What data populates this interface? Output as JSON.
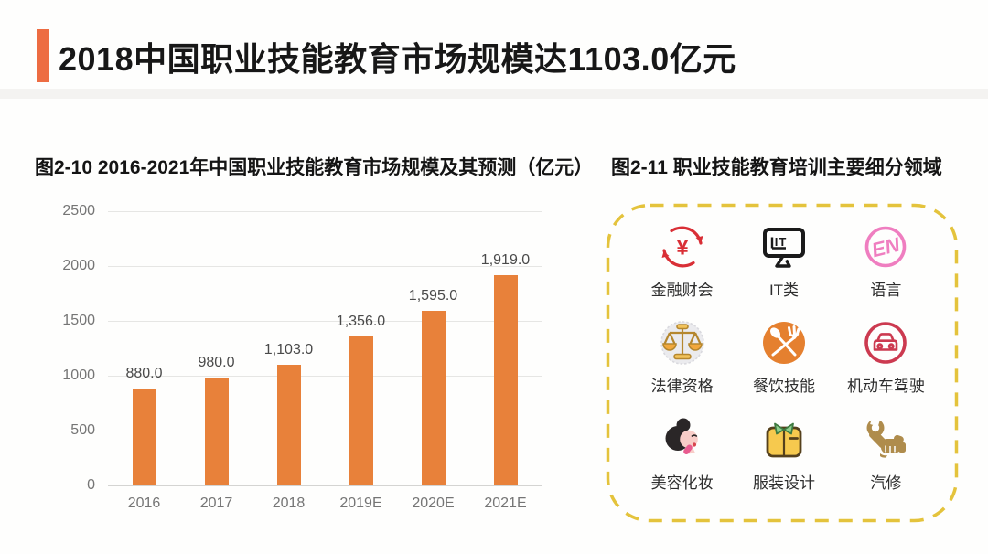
{
  "header": {
    "title": "2018中国职业技能教育市场规模达1103.0亿元",
    "accent_color": "#ED6C42"
  },
  "chart_data": {
    "type": "bar",
    "title": "图2-10 2016-2021年中国职业技能教育市场规模及其预测（亿元）",
    "categories": [
      "2016",
      "2017",
      "2018",
      "2019E",
      "2020E",
      "2021E"
    ],
    "values": [
      880.0,
      980.0,
      1103.0,
      1356.0,
      1595.0,
      1919.0
    ],
    "value_labels": [
      "880.0",
      "980.0",
      "1,103.0",
      "1,356.0",
      "1,595.0",
      "1,919.0"
    ],
    "y_ticks": [
      0,
      500,
      1000,
      1500,
      2000,
      2500
    ],
    "ylim": [
      0,
      2500
    ],
    "xlabel": "",
    "ylabel": "",
    "grid": true,
    "legend": false,
    "bar_color": "#E8813A"
  },
  "segments_section": {
    "title": "图2-11 职业技能教育培训主要细分领域",
    "border_color": "#E4C33C",
    "items": [
      {
        "label": "金融财会",
        "icon": "finance-yuan-icon",
        "color": "#D92F36"
      },
      {
        "label": "IT类",
        "icon": "it-monitor-icon",
        "color": "#1A1A1A"
      },
      {
        "label": "语言",
        "icon": "english-language-icon",
        "color": "#EF7EC0"
      },
      {
        "label": "法律资格",
        "icon": "scales-of-justice-icon",
        "color": "#B5872E"
      },
      {
        "label": "餐饮技能",
        "icon": "fork-spoon-icon",
        "color": "#E5802F"
      },
      {
        "label": "机动车驾驶",
        "icon": "car-driving-icon",
        "color": "#CC3A50"
      },
      {
        "label": "美容化妆",
        "icon": "beauty-makeup-icon",
        "color": "#2A2627"
      },
      {
        "label": "服装设计",
        "icon": "shirt-design-icon",
        "color": "#F6C94E"
      },
      {
        "label": "汽修",
        "icon": "wrench-repair-icon",
        "color": "#AF8C4C"
      }
    ]
  }
}
